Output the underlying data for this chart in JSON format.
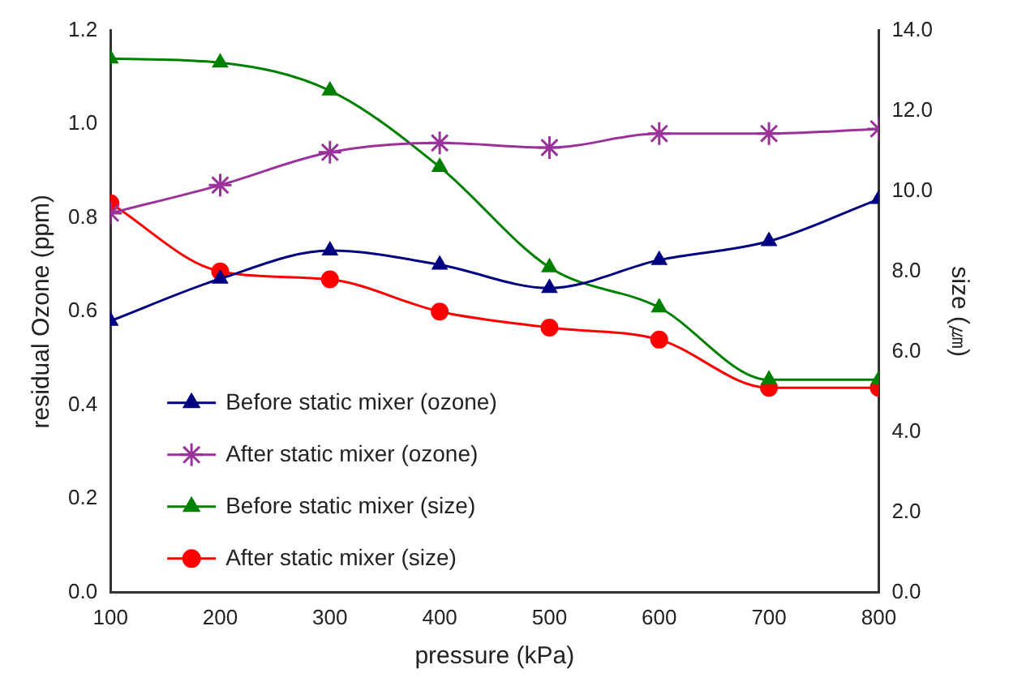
{
  "chart_data": {
    "type": "line",
    "xlabel": "pressure (kPa)",
    "ylabel": "residual Ozone (ppm)",
    "y2label": "size (㎛)",
    "x": [
      100,
      200,
      300,
      400,
      500,
      600,
      700,
      800
    ],
    "xlim": [
      100,
      800
    ],
    "xticks": [
      100,
      200,
      300,
      400,
      500,
      600,
      700,
      800
    ],
    "ylim": [
      0,
      1.2
    ],
    "yticks": [
      {
        "value": 0,
        "label": "0.0"
      },
      {
        "value": 0.2,
        "label": "0.2"
      },
      {
        "value": 0.4,
        "label": "0.4"
      },
      {
        "value": 0.6,
        "label": "0.6"
      },
      {
        "value": 0.8,
        "label": "0.8"
      },
      {
        "value": 1,
        "label": "1.0"
      },
      {
        "value": 1.2,
        "label": "1.2"
      }
    ],
    "y2lim": [
      0,
      14
    ],
    "y2ticks": [
      {
        "value": 0,
        "label": "0.0"
      },
      {
        "value": 2,
        "label": "2.0"
      },
      {
        "value": 4,
        "label": "4.0"
      },
      {
        "value": 6,
        "label": "6.0"
      },
      {
        "value": 8,
        "label": "8.0"
      },
      {
        "value": 10,
        "label": "10.0"
      },
      {
        "value": 12,
        "label": "12.0"
      },
      {
        "value": 14,
        "label": "14.0"
      }
    ],
    "grid": false,
    "legend": "bottom left",
    "line_style": "solid",
    "series": [
      {
        "name": "Before static mixer (ozone)",
        "color": "#000080",
        "marker": "triangle",
        "values": [
          0.58,
          0.67,
          0.73,
          0.7,
          0.65,
          0.71,
          0.75,
          0.84
        ]
      },
      {
        "name": "After static mixer (ozone)",
        "color": "#993399",
        "marker": "cross",
        "values": [
          0.81,
          0.87,
          0.94,
          0.96,
          0.95,
          0.98,
          0.98,
          0.99
        ]
      },
      {
        "name": "Before static mixer (size)",
        "color": "#008000",
        "marker": "triangle",
        "axis": "y2",
        "values": [
          13.3,
          13.2,
          12.5,
          10.6,
          8.1,
          7.1,
          5.3,
          5.3
        ]
      },
      {
        "name": "After static mixer (size)",
        "color": "#ff0000",
        "marker": "circle",
        "axis": "y2",
        "values": [
          9.7,
          8.0,
          7.8,
          7.0,
          6.6,
          6.3,
          5.1,
          5.1
        ]
      }
    ]
  }
}
